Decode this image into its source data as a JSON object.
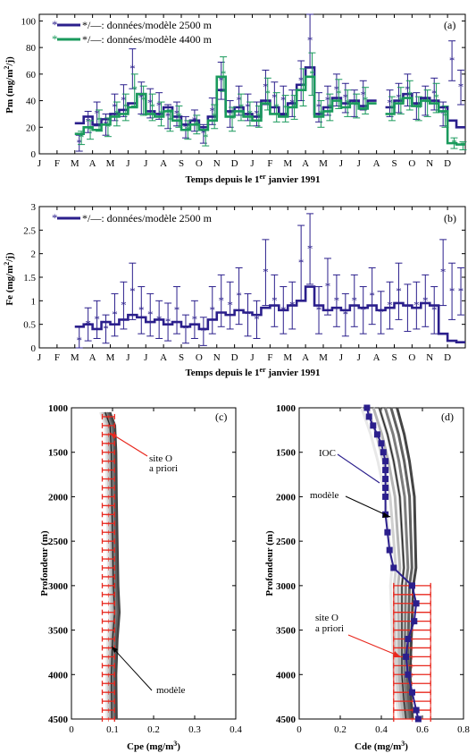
{
  "colors": {
    "navy": "#2b1f8c",
    "green": "#1a9a5c",
    "red": "#e8281e",
    "frame": "#000000"
  },
  "chart_data": [
    {
      "type": "line",
      "panel_label": "(a)",
      "ylabel": "Pm (mg/m²/j)",
      "xlabel": "Temps depuis le 1er janvier 1991",
      "ylim": [
        0,
        105
      ],
      "yticks": [
        "0",
        "20",
        "40",
        "60",
        "80",
        "100"
      ],
      "month_ticks": [
        "J",
        "F",
        "M",
        "A",
        "M",
        "J",
        "J",
        "A",
        "S",
        "O",
        "N",
        "D",
        "J",
        "F",
        "M",
        "A",
        "M",
        "J",
        "J",
        "A",
        "S",
        "O",
        "N",
        "D"
      ],
      "legend": [
        "*/—: données/modèle 2500 m",
        "*/—: données/modèle 4400 m"
      ],
      "series": [
        {
          "name": "données/modèle 2500 m",
          "color": "#2b1f8c",
          "model_x": [
            2.0,
            2.5,
            3.0,
            3.5,
            4.0,
            4.5,
            5.0,
            5.5,
            6.0,
            6.5,
            7.0,
            7.5,
            8.0,
            8.5,
            9.0,
            9.5,
            10.0,
            10.5,
            11.0,
            11.5,
            12.0,
            12.5,
            13.0,
            13.5,
            14.0,
            14.5,
            15.0,
            15.5,
            16.0,
            16.5,
            17.0,
            17.5,
            18.0,
            18.5
          ],
          "model_y": [
            23,
            28,
            22,
            26,
            30,
            33,
            38,
            45,
            32,
            30,
            35,
            28,
            22,
            25,
            20,
            28,
            48,
            32,
            35,
            30,
            28,
            40,
            35,
            30,
            38,
            52,
            65,
            30,
            35,
            42,
            38,
            40,
            36,
            40
          ],
          "model_x2": [
            19.5,
            20.0,
            20.5,
            21.0,
            21.5,
            22.0,
            22.5,
            23.0,
            23.5
          ],
          "model_y2": [
            35,
            40,
            45,
            38,
            42,
            40,
            35,
            25,
            20
          ],
          "data_x": [
            2.0,
            2.5,
            3.0,
            3.5,
            4.0,
            4.5,
            5.0,
            5.5,
            6.0,
            6.5,
            7.0,
            7.5,
            8.0,
            8.5,
            9.0,
            9.5,
            10.0,
            10.5,
            11.0,
            11.5,
            12.0,
            12.5,
            13.0,
            13.5,
            14.0,
            14.5,
            15.0,
            15.5,
            16.0,
            16.5,
            17.0,
            17.5,
            18.0,
            19.5,
            20.0,
            20.5,
            21.0,
            21.5,
            22.0,
            22.5,
            23.0,
            23.5
          ],
          "data_y": [
            8,
            24,
            30,
            22,
            35,
            40,
            64,
            42,
            38,
            36,
            28,
            30,
            20,
            25,
            15,
            32,
            55,
            30,
            40,
            35,
            30,
            50,
            42,
            40,
            38,
            55,
            85,
            35,
            40,
            48,
            42,
            38,
            44,
            38,
            42,
            48,
            36,
            40,
            45,
            30,
            70,
            50
          ],
          "err": [
            6,
            8,
            9,
            8,
            10,
            12,
            15,
            12,
            11,
            10,
            9,
            9,
            8,
            8,
            7,
            10,
            14,
            10,
            11,
            10,
            9,
            13,
            12,
            11,
            10,
            15,
            20,
            11,
            11,
            12,
            11,
            10,
            11,
            10,
            11,
            12,
            10,
            11,
            12,
            9,
            15,
            13
          ]
        },
        {
          "name": "données/modèle 4400 m",
          "color": "#1a9a5c",
          "model_x": [
            2.0,
            2.5,
            3.0,
            3.5,
            4.0,
            4.5,
            5.0,
            5.5,
            6.0,
            6.5,
            7.0,
            7.5,
            8.0,
            8.5,
            9.0,
            9.5,
            10.0,
            10.5,
            11.0,
            11.5,
            12.0,
            12.5,
            13.0,
            13.5,
            14.0,
            14.5,
            15.0,
            15.5,
            16.0,
            16.5,
            17.0,
            17.5,
            18.0,
            18.5
          ],
          "model_y": [
            15,
            20,
            18,
            22,
            28,
            30,
            35,
            45,
            30,
            28,
            32,
            25,
            18,
            22,
            18,
            25,
            58,
            28,
            32,
            28,
            25,
            38,
            30,
            28,
            35,
            48,
            58,
            28,
            32,
            40,
            35,
            38,
            34,
            38
          ],
          "model_x2": [
            19.5,
            20.0,
            20.5,
            21.0,
            21.5,
            22.0,
            22.5,
            23.0,
            23.5
          ],
          "model_y2": [
            30,
            38,
            42,
            36,
            40,
            38,
            32,
            8,
            7
          ],
          "data_x": [
            2.0,
            2.5,
            3.0,
            3.5,
            4.0,
            4.5,
            5.0,
            5.5,
            6.0,
            6.5,
            7.0,
            7.5,
            8.0,
            8.5,
            9.0,
            9.5,
            10.0,
            10.5,
            11.0,
            11.5,
            12.0,
            12.5,
            13.0,
            13.5,
            14.0,
            14.5,
            15.0,
            15.5,
            16.0,
            16.5,
            17.0,
            17.5,
            18.0,
            19.5,
            20.0,
            20.5,
            21.0,
            21.5,
            22.0,
            22.5,
            23.0,
            23.5
          ],
          "data_y": [
            12,
            18,
            25,
            20,
            30,
            35,
            48,
            40,
            35,
            30,
            25,
            28,
            18,
            22,
            12,
            28,
            60,
            26,
            35,
            30,
            28,
            45,
            35,
            34,
            35,
            50,
            60,
            30,
            35,
            45,
            38,
            36,
            40,
            34,
            40,
            44,
            34,
            38,
            42,
            28,
            8,
            6
          ],
          "err": [
            5,
            7,
            8,
            7,
            9,
            10,
            12,
            11,
            10,
            9,
            8,
            8,
            7,
            7,
            6,
            9,
            13,
            9,
            10,
            9,
            8,
            12,
            11,
            10,
            9,
            14,
            16,
            10,
            10,
            11,
            10,
            9,
            10,
            9,
            10,
            11,
            9,
            10,
            11,
            8,
            4,
            3
          ]
        }
      ]
    },
    {
      "type": "line",
      "panel_label": "(b)",
      "ylabel": "Fe (mg/m²/j)",
      "xlabel": "Temps depuis le 1er janvier 1991",
      "ylim": [
        0,
        3
      ],
      "yticks": [
        "0",
        "0.5",
        "1",
        "1.5",
        "2",
        "2.5",
        "3"
      ],
      "month_ticks": [
        "J",
        "F",
        "M",
        "A",
        "M",
        "J",
        "J",
        "A",
        "S",
        "O",
        "N",
        "D",
        "J",
        "F",
        "M",
        "A",
        "M",
        "J",
        "J",
        "A",
        "S",
        "O",
        "N",
        "D"
      ],
      "legend": [
        "*/—: données/modèle 2500 m"
      ],
      "series": [
        {
          "name": "données/modèle 2500 m",
          "color": "#2b1f8c",
          "model_x": [
            2.0,
            2.5,
            3.0,
            3.5,
            4.0,
            4.5,
            5.0,
            5.5,
            6.0,
            6.5,
            7.0,
            7.5,
            8.0,
            8.5,
            9.0,
            9.5,
            10.0,
            10.5,
            11.0,
            11.5,
            12.0,
            12.5,
            13.0,
            13.5,
            14.0,
            14.5,
            15.0,
            15.5,
            16.0,
            16.5,
            17.0,
            17.5,
            18.0,
            18.5,
            19.0,
            19.5,
            20.0,
            20.5,
            21.0,
            21.5,
            22.0,
            22.5,
            23.0,
            23.5
          ],
          "model_y": [
            0.45,
            0.5,
            0.4,
            0.55,
            0.5,
            0.6,
            0.7,
            0.65,
            0.55,
            0.6,
            0.5,
            0.55,
            0.45,
            0.5,
            0.4,
            0.6,
            0.75,
            0.7,
            0.8,
            0.75,
            0.7,
            0.85,
            0.9,
            0.8,
            0.9,
            1.0,
            1.3,
            0.9,
            0.8,
            0.85,
            0.8,
            0.9,
            0.85,
            0.9,
            0.8,
            0.85,
            0.95,
            0.9,
            0.85,
            0.95,
            0.9,
            0.3,
            0.15,
            0.12
          ],
          "data_x": [
            2.0,
            2.5,
            3.0,
            3.5,
            4.0,
            4.5,
            5.0,
            5.5,
            6.0,
            6.5,
            7.0,
            7.5,
            8.0,
            8.5,
            9.0,
            9.5,
            10.0,
            10.5,
            11.0,
            11.5,
            12.0,
            12.5,
            13.0,
            13.5,
            14.0,
            14.5,
            15.0,
            15.5,
            16.0,
            16.5,
            17.0,
            17.5,
            18.0,
            18.5,
            19.0,
            19.5,
            20.0,
            20.5,
            21.0,
            21.5,
            22.0,
            22.5,
            23.0,
            23.5
          ],
          "data_y": [
            0.15,
            0.5,
            0.6,
            0.4,
            0.7,
            0.9,
            1.2,
            0.8,
            0.7,
            0.6,
            0.55,
            0.8,
            0.4,
            0.6,
            0.35,
            0.8,
            1.0,
            0.9,
            1.1,
            0.7,
            0.6,
            1.6,
            1.0,
            0.8,
            0.9,
            1.8,
            2.1,
            0.8,
            1.3,
            1.0,
            0.7,
            1.0,
            0.8,
            1.1,
            0.75,
            0.9,
            1.2,
            0.85,
            0.9,
            1.0,
            0.8,
            1.6,
            1.2,
            1.2
          ],
          "err": [
            0.3,
            0.35,
            0.4,
            0.3,
            0.45,
            0.5,
            0.6,
            0.5,
            0.45,
            0.4,
            0.4,
            0.5,
            0.3,
            0.4,
            0.3,
            0.5,
            0.55,
            0.5,
            0.6,
            0.45,
            0.4,
            0.7,
            0.55,
            0.5,
            0.5,
            0.8,
            0.75,
            0.5,
            0.6,
            0.55,
            0.45,
            0.55,
            0.5,
            0.6,
            0.45,
            0.5,
            0.6,
            0.5,
            0.5,
            0.55,
            0.5,
            0.7,
            0.6,
            0.5
          ]
        }
      ]
    },
    {
      "type": "line",
      "panel_label": "(c)",
      "xlabel": "Cpe (mg/m³)",
      "ylabel": "Profondeur (m)",
      "xlim": [
        0,
        0.4
      ],
      "ylim": [
        4500,
        1000
      ],
      "xticks": [
        "0",
        "0.1",
        "0.2",
        "0.3",
        "0.4"
      ],
      "yticks": [
        "1000",
        "1500",
        "2000",
        "2500",
        "3000",
        "3500",
        "4000",
        "4500"
      ],
      "annotations": [
        "site O",
        "a priori",
        "modèle"
      ],
      "prior_depths": [
        1100,
        1200,
        1300,
        1400,
        1500,
        1600,
        1700,
        1800,
        1900,
        2000,
        2100,
        2200,
        2300,
        2400,
        2500,
        2600,
        2700,
        2800,
        2900,
        3000,
        3100,
        3200,
        3300,
        3400,
        3500,
        3600,
        3700,
        3800,
        3900,
        4000,
        4100,
        4200,
        4300,
        4400,
        4500
      ],
      "prior_mean": 0.09,
      "prior_halfwidth": 0.015,
      "model_depth": [
        1050,
        1200,
        1500,
        2000,
        2500,
        3000,
        3300,
        3600,
        4000,
        4500
      ],
      "model_value": [
        0.082,
        0.094,
        0.097,
        0.098,
        0.1,
        0.102,
        0.105,
        0.1,
        0.097,
        0.098
      ]
    },
    {
      "type": "line",
      "panel_label": "(d)",
      "xlabel": "Cde (mg/m³)",
      "ylabel": "Profondeur (m)",
      "xlim": [
        0,
        0.8
      ],
      "ylim": [
        4500,
        1000
      ],
      "xticks": [
        "0",
        "0.2",
        "0.4",
        "0.6",
        "0.8"
      ],
      "yticks": [
        "1000",
        "1500",
        "2000",
        "2500",
        "3000",
        "3500",
        "4000",
        "4500"
      ],
      "annotations": [
        "IOC",
        "modèle",
        "site O",
        "a priori"
      ],
      "ioc_depth": [
        1000,
        1100,
        1200,
        1300,
        1400,
        1500,
        1600,
        1700,
        1800,
        1900,
        2000,
        2200,
        2400,
        2600,
        2800,
        3000,
        3200,
        3400,
        3600,
        3800,
        4000,
        4200,
        4400,
        4500
      ],
      "ioc_value": [
        0.33,
        0.34,
        0.36,
        0.38,
        0.4,
        0.41,
        0.42,
        0.42,
        0.42,
        0.42,
        0.42,
        0.42,
        0.43,
        0.44,
        0.46,
        0.55,
        0.57,
        0.56,
        0.53,
        0.52,
        0.53,
        0.55,
        0.57,
        0.58
      ],
      "prior_depths": [
        3000,
        3100,
        3200,
        3300,
        3400,
        3500,
        3600,
        3700,
        3800,
        3900,
        4000,
        4100,
        4200,
        4300,
        4400,
        4500
      ],
      "prior_mean": 0.55,
      "prior_halfwidth": 0.09,
      "model_depth": [
        1000,
        1300,
        1600,
        2000,
        2400,
        2800,
        3000,
        3300,
        3600,
        4000,
        4300,
        4500
      ],
      "model_value": [
        0.39,
        0.43,
        0.46,
        0.49,
        0.5,
        0.51,
        0.5,
        0.5,
        0.5,
        0.5,
        0.51,
        0.52
      ]
    }
  ]
}
